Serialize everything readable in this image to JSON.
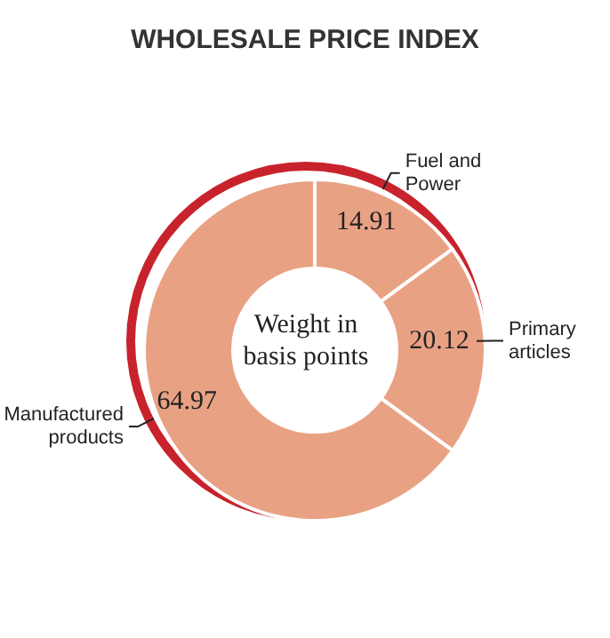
{
  "chart_data": {
    "type": "donut",
    "title": "WHOLESALE PRICE INDEX",
    "categories": [
      "Fuel and Power",
      "Primary articles",
      "Manufactured products"
    ],
    "values": [
      14.91,
      20.12,
      64.97
    ],
    "colors": [
      "#e9a184",
      "#e9a184",
      "#e9a184"
    ],
    "data_labels": true,
    "annotations": [
      "Weight in basis points"
    ]
  }
}
